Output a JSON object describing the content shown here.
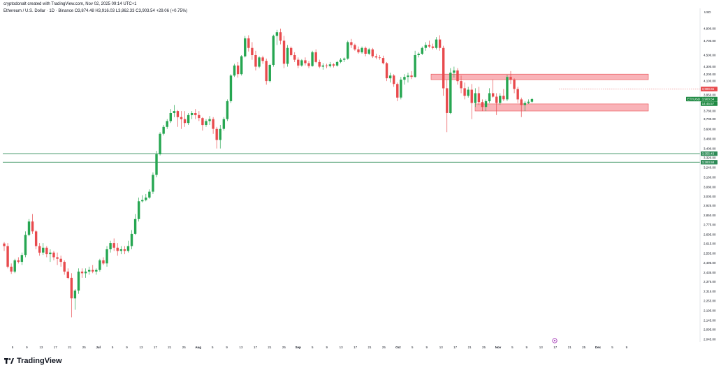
{
  "header": {
    "creator": "cryptodonalt created with TradingView.com, Nov 02, 2025 09:14 UTC+1",
    "symbol_line": "Ethereum / U.S. Dollar · 1D · Binance  O3,874.48  H3,916.03  L3,862.33  C3,903.54  +29.06 (+0.75%)"
  },
  "footer": {
    "logo_text": "TradingView"
  },
  "colors": {
    "up": "#26a651",
    "down": "#e84a4d",
    "zone_fill": "#f7a0a6",
    "zone_stroke": "#e84a4d",
    "support_line": "#2e8b57",
    "dashed_level": "#e84a4d",
    "last_price_tag": "#1f8a43"
  },
  "chart_data": {
    "type": "candlestick",
    "price_scale_unit": "USD",
    "price_ticks": [
      "4,900.00",
      "4,700.00",
      "4,500.00",
      "4,300.00",
      "4,200.00",
      "4,100.00",
      "3,980.00",
      "3,950.00",
      "3,860.00",
      "3,780.00",
      "3,700.00",
      "3,600.00",
      "3,480.00",
      "3,400.00",
      "3,320.00",
      "3,240.00",
      "3,160.00",
      "3,080.00",
      "3,000.00",
      "2,925.00",
      "2,850.00",
      "2,775.00",
      "2,695.00",
      "2,615.00",
      "2,555.00",
      "2,495.00",
      "2,435.00",
      "2,375.00",
      "2,315.00",
      "2,255.00",
      "2,195.00",
      "2,145.00",
      "2,095.00",
      "2,045.00"
    ],
    "date_ticks": [
      "5",
      "9",
      "13",
      "17",
      "21",
      "25",
      "Jul",
      "5",
      "9",
      "13",
      "17",
      "21",
      "25",
      "Aug",
      "5",
      "9",
      "13",
      "17",
      "21",
      "25",
      "Sep",
      "5",
      "9",
      "13",
      "17",
      "21",
      "25",
      "Oct",
      "5",
      "9",
      "13",
      "17",
      "21",
      "25",
      "Nov",
      "5",
      "9",
      "13",
      "17",
      "21",
      "25",
      "Dec",
      "5",
      "9"
    ],
    "price_tags": {
      "dashed_level": "3,989.65",
      "last_price_label": "ETHUSD",
      "last_price": "3,903.54",
      "countdown": "14:45:57",
      "support_upper": "3,355.43",
      "support_lower": "3,283.58"
    },
    "resistance_zone": {
      "top": 4200,
      "bottom": 4120
    },
    "support_zone": {
      "top": 3850,
      "bottom": 3780
    },
    "support_lines": [
      3355.43,
      3283.58
    ],
    "dashed_level": 3989.65,
    "candles": [
      [
        2616,
        2628,
        2570,
        2600
      ],
      [
        2600,
        2620,
        2460,
        2470
      ],
      [
        2470,
        2490,
        2425,
        2440
      ],
      [
        2440,
        2520,
        2430,
        2510
      ],
      [
        2510,
        2530,
        2490,
        2500
      ],
      [
        2500,
        2560,
        2480,
        2545
      ],
      [
        2545,
        2720,
        2530,
        2690
      ],
      [
        2690,
        2820,
        2680,
        2800
      ],
      [
        2800,
        2860,
        2700,
        2720
      ],
      [
        2720,
        2730,
        2580,
        2600
      ],
      [
        2600,
        2620,
        2540,
        2560
      ],
      [
        2560,
        2620,
        2545,
        2590
      ],
      [
        2590,
        2600,
        2530,
        2550
      ],
      [
        2550,
        2580,
        2500,
        2560
      ],
      [
        2560,
        2570,
        2510,
        2530
      ],
      [
        2530,
        2560,
        2480,
        2520
      ],
      [
        2520,
        2540,
        2470,
        2500
      ],
      [
        2500,
        2510,
        2420,
        2440
      ],
      [
        2440,
        2460,
        2390,
        2400
      ],
      [
        2400,
        2430,
        2160,
        2270
      ],
      [
        2270,
        2330,
        2200,
        2320
      ],
      [
        2320,
        2460,
        2300,
        2440
      ],
      [
        2440,
        2460,
        2400,
        2430
      ],
      [
        2430,
        2460,
        2400,
        2440
      ],
      [
        2440,
        2470,
        2420,
        2450
      ],
      [
        2450,
        2480,
        2430,
        2440
      ],
      [
        2440,
        2460,
        2420,
        2450
      ],
      [
        2450,
        2520,
        2440,
        2510
      ],
      [
        2510,
        2530,
        2480,
        2490
      ],
      [
        2490,
        2600,
        2470,
        2580
      ],
      [
        2580,
        2640,
        2560,
        2620
      ],
      [
        2620,
        2660,
        2570,
        2590
      ],
      [
        2590,
        2620,
        2540,
        2570
      ],
      [
        2570,
        2600,
        2550,
        2580
      ],
      [
        2580,
        2600,
        2550,
        2570
      ],
      [
        2570,
        2640,
        2560,
        2600
      ],
      [
        2600,
        2730,
        2580,
        2700
      ],
      [
        2700,
        2860,
        2690,
        2820
      ],
      [
        2820,
        2990,
        2800,
        2960
      ],
      [
        2960,
        3010,
        2950,
        2970
      ],
      [
        2970,
        3020,
        2960,
        2990
      ],
      [
        2990,
        3060,
        2980,
        3040
      ],
      [
        3040,
        3200,
        3020,
        3180
      ],
      [
        3180,
        3380,
        3160,
        3350
      ],
      [
        3350,
        3560,
        3340,
        3540
      ],
      [
        3540,
        3640,
        3520,
        3620
      ],
      [
        3620,
        3700,
        3600,
        3680
      ],
      [
        3680,
        3800,
        3660,
        3760
      ],
      [
        3760,
        3840,
        3720,
        3780
      ],
      [
        3780,
        3790,
        3620,
        3720
      ],
      [
        3720,
        3780,
        3600,
        3700
      ],
      [
        3700,
        3780,
        3620,
        3660
      ],
      [
        3660,
        3760,
        3640,
        3740
      ],
      [
        3740,
        3780,
        3700,
        3760
      ],
      [
        3760,
        3800,
        3700,
        3740
      ],
      [
        3740,
        3780,
        3680,
        3710
      ],
      [
        3710,
        3720,
        3580,
        3640
      ],
      [
        3640,
        3700,
        3620,
        3680
      ],
      [
        3680,
        3730,
        3640,
        3700
      ],
      [
        3700,
        3720,
        3540,
        3600
      ],
      [
        3600,
        3620,
        3400,
        3470
      ],
      [
        3470,
        3640,
        3400,
        3600
      ],
      [
        3600,
        3720,
        3580,
        3700
      ],
      [
        3700,
        3900,
        3680,
        3880
      ],
      [
        3880,
        4200,
        3860,
        4180
      ],
      [
        4180,
        4350,
        4160,
        4320
      ],
      [
        4320,
        4380,
        4150,
        4200
      ],
      [
        4200,
        4500,
        4180,
        4480
      ],
      [
        4480,
        4780,
        4460,
        4740
      ],
      [
        4740,
        4790,
        4550,
        4600
      ],
      [
        4600,
        4680,
        4420,
        4500
      ],
      [
        4500,
        4560,
        4250,
        4300
      ],
      [
        4300,
        4480,
        4280,
        4460
      ],
      [
        4460,
        4490,
        4350,
        4400
      ],
      [
        4400,
        4440,
        4050,
        4100
      ],
      [
        4100,
        4350,
        4080,
        4330
      ],
      [
        4330,
        4800,
        4300,
        4780
      ],
      [
        4780,
        4880,
        4640,
        4840
      ],
      [
        4840,
        4900,
        4650,
        4700
      ],
      [
        4700,
        4780,
        4280,
        4350
      ],
      [
        4350,
        4640,
        4300,
        4600
      ],
      [
        4600,
        4620,
        4480,
        4500
      ],
      [
        4500,
        4540,
        4380,
        4420
      ],
      [
        4420,
        4460,
        4280,
        4320
      ],
      [
        4320,
        4430,
        4300,
        4410
      ],
      [
        4410,
        4460,
        4320,
        4360
      ],
      [
        4360,
        4400,
        4280,
        4310
      ],
      [
        4310,
        4560,
        4300,
        4540
      ],
      [
        4540,
        4580,
        4360,
        4380
      ],
      [
        4380,
        4420,
        4280,
        4300
      ],
      [
        4300,
        4360,
        4260,
        4320
      ],
      [
        4320,
        4350,
        4280,
        4310
      ],
      [
        4310,
        4380,
        4290,
        4340
      ],
      [
        4340,
        4360,
        4290,
        4320
      ],
      [
        4320,
        4400,
        4300,
        4380
      ],
      [
        4380,
        4450,
        4360,
        4420
      ],
      [
        4420,
        4460,
        4380,
        4440
      ],
      [
        4440,
        4700,
        4420,
        4680
      ],
      [
        4680,
        4730,
        4600,
        4640
      ],
      [
        4640,
        4660,
        4560,
        4580
      ],
      [
        4580,
        4620,
        4520,
        4540
      ],
      [
        4540,
        4620,
        4520,
        4600
      ],
      [
        4600,
        4620,
        4480,
        4520
      ],
      [
        4520,
        4600,
        4500,
        4580
      ],
      [
        4580,
        4600,
        4450,
        4480
      ],
      [
        4480,
        4520,
        4430,
        4460
      ],
      [
        4460,
        4500,
        4420,
        4450
      ],
      [
        4450,
        4490,
        4340,
        4360
      ],
      [
        4360,
        4380,
        4100,
        4140
      ],
      [
        4140,
        4220,
        4080,
        4180
      ],
      [
        4180,
        4200,
        4020,
        4060
      ],
      [
        4060,
        4080,
        3880,
        3920
      ],
      [
        3920,
        4160,
        3900,
        4120
      ],
      [
        4120,
        4200,
        4050,
        4160
      ],
      [
        4160,
        4220,
        4080,
        4180
      ],
      [
        4180,
        4240,
        4130,
        4160
      ],
      [
        4160,
        4560,
        4150,
        4500
      ],
      [
        4500,
        4540,
        4460,
        4520
      ],
      [
        4520,
        4620,
        4500,
        4600
      ],
      [
        4600,
        4680,
        4560,
        4640
      ],
      [
        4640,
        4700,
        4600,
        4620
      ],
      [
        4620,
        4660,
        4580,
        4600
      ],
      [
        4600,
        4760,
        4580,
        4720
      ],
      [
        4720,
        4790,
        4560,
        4600
      ],
      [
        4600,
        4630,
        3940,
        4000
      ],
      [
        4000,
        4120,
        3560,
        3760
      ],
      [
        3760,
        4280,
        3750,
        4220
      ],
      [
        4220,
        4300,
        4150,
        4250
      ],
      [
        4250,
        4280,
        4050,
        4100
      ],
      [
        4100,
        4180,
        3960,
        4000
      ],
      [
        4000,
        4080,
        3900,
        3940
      ],
      [
        3940,
        4020,
        3920,
        3980
      ],
      [
        3980,
        4060,
        3700,
        3860
      ],
      [
        3860,
        4000,
        3820,
        3960
      ],
      [
        3960,
        4020,
        3840,
        3870
      ],
      [
        3870,
        3900,
        3780,
        3820
      ],
      [
        3820,
        3900,
        3780,
        3880
      ],
      [
        3880,
        4000,
        3860,
        3960
      ],
      [
        3960,
        4120,
        3920,
        3930
      ],
      [
        3930,
        3960,
        3740,
        3860
      ],
      [
        3860,
        3960,
        3840,
        3940
      ],
      [
        3940,
        3990,
        3880,
        3900
      ],
      [
        3900,
        4190,
        3880,
        4160
      ],
      [
        4160,
        4240,
        4060,
        4120
      ],
      [
        4120,
        4140,
        3960,
        3990
      ],
      [
        3990,
        4020,
        3860,
        3900
      ],
      [
        3900,
        3920,
        3720,
        3840
      ],
      [
        3840,
        3880,
        3780,
        3860
      ],
      [
        3860,
        3900,
        3850,
        3874
      ],
      [
        3874,
        3916,
        3862,
        3903
      ]
    ]
  }
}
